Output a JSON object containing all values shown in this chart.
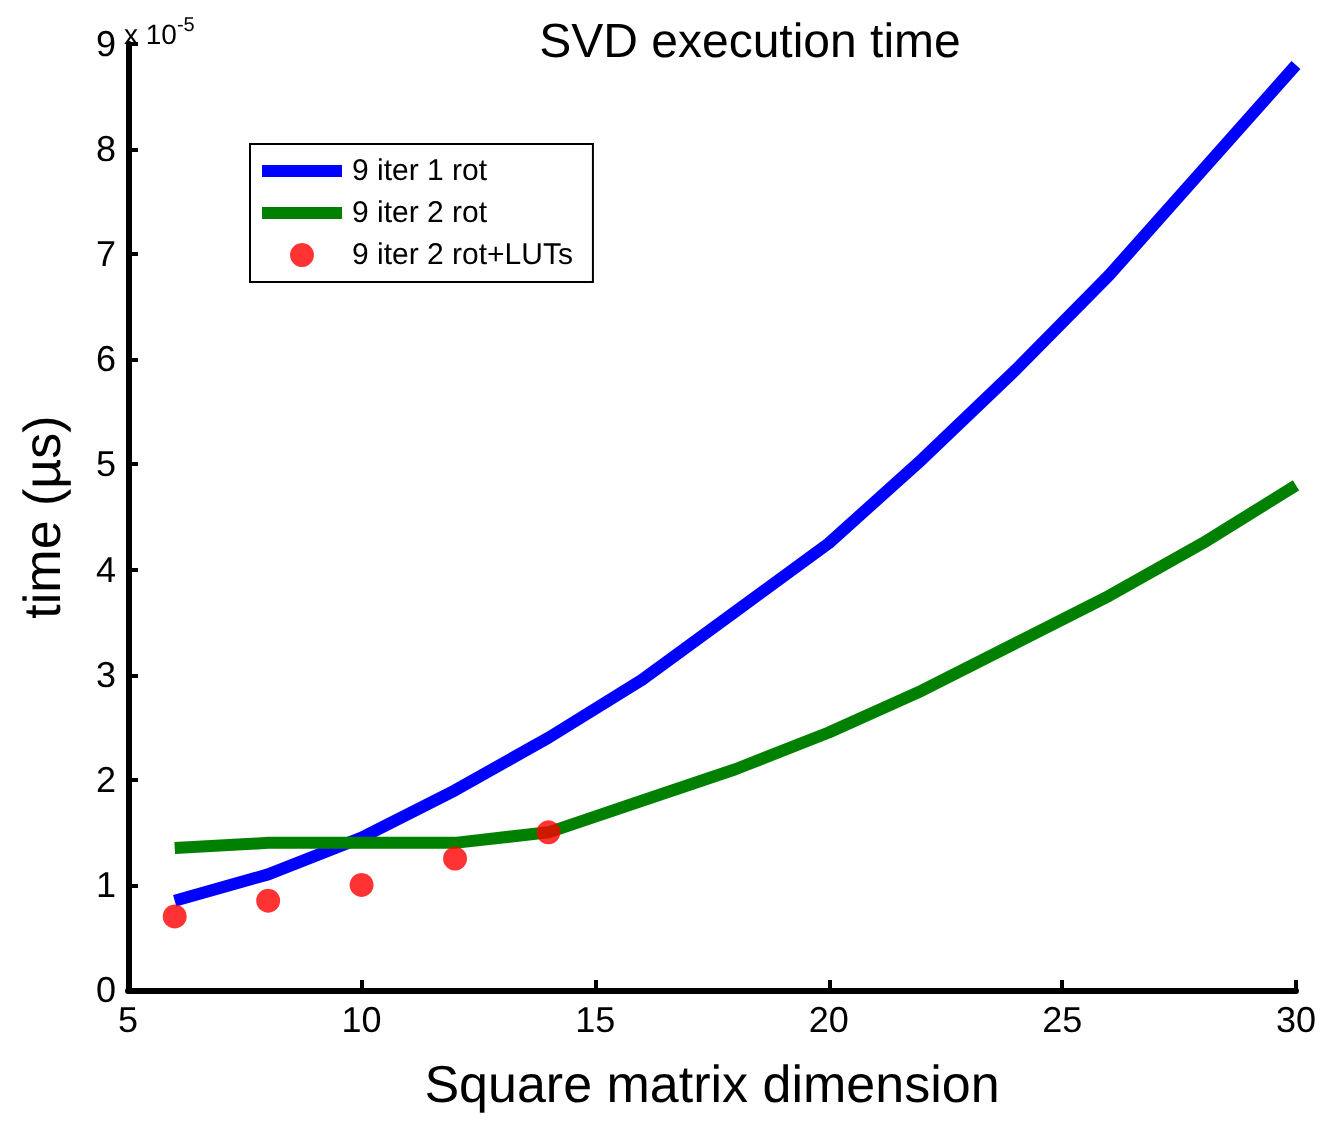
{
  "chart_data": {
    "type": "line",
    "title": "SVD execution time",
    "xlabel": "Square matrix dimension",
    "ylabel": "time (µs)",
    "annotations": [
      "x 10$^{-5}$"
    ],
    "x": [
      6,
      8,
      10,
      12,
      14,
      16,
      18,
      20,
      22,
      24,
      26,
      28,
      30
    ],
    "xlim": [
      5,
      30
    ],
    "xticks": [
      5,
      10,
      15,
      20,
      25,
      30
    ],
    "ylim": [
      0,
      9
    ],
    "yticks": [
      0,
      1,
      2,
      3,
      4,
      5,
      6,
      7,
      8,
      9
    ],
    "series": [
      {
        "name": "9 iter 1 rot",
        "color": "#0000ff",
        "values": [
          0.85,
          1.1,
          1.45,
          1.9,
          2.4,
          2.95,
          3.6,
          4.25,
          5.05,
          5.9,
          6.8,
          7.8,
          8.8
        ]
      },
      {
        "name": "9 iter 2 rot",
        "color": "#008000",
        "values": [
          1.35,
          1.4,
          1.4,
          1.4,
          1.5,
          1.8,
          2.1,
          2.45,
          2.85,
          3.3,
          3.75,
          4.25,
          4.8
        ]
      },
      {
        "name": "9 iter 2 rot+LUTs",
        "type": "scatter",
        "marker": "circle",
        "color": "#ff0000",
        "x": [
          6,
          8,
          10,
          12,
          14
        ],
        "values": [
          0.7,
          0.85,
          1.0,
          1.25,
          1.5
        ]
      }
    ],
    "legend": "top left",
    "grid": false
  }
}
